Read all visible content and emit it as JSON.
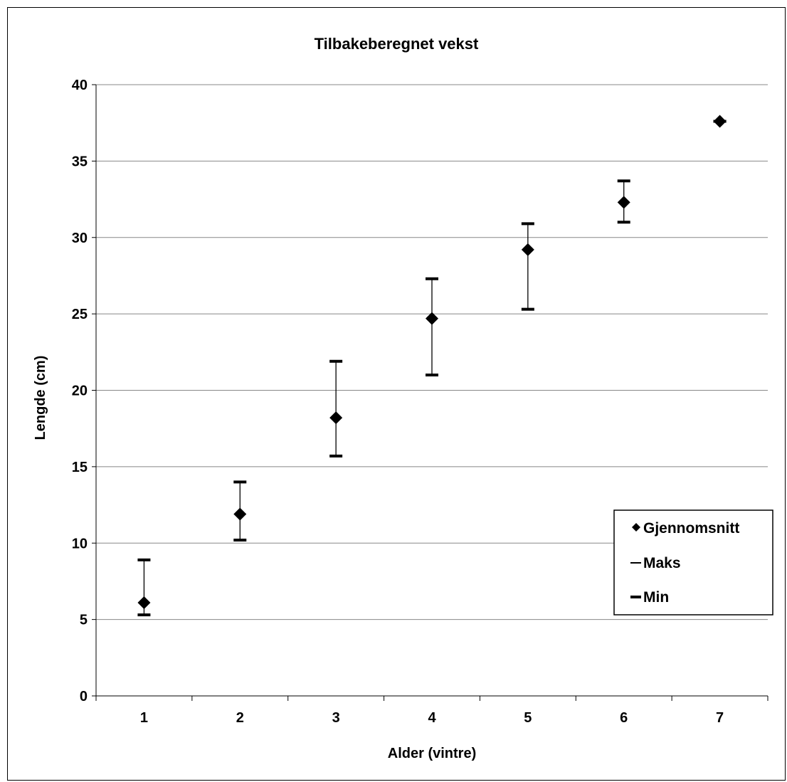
{
  "chart_data": {
    "type": "scatter",
    "title": "Tilbakeberegnet vekst",
    "xlabel": "Alder (vintre)",
    "ylabel": "Lengde (cm)",
    "categories": [
      "1",
      "2",
      "3",
      "4",
      "5",
      "6",
      "7"
    ],
    "ylim": [
      0,
      40
    ],
    "yticks": [
      "0",
      "5",
      "10",
      "15",
      "20",
      "25",
      "30",
      "35",
      "40"
    ],
    "grid": true,
    "legend_position": "bottom-right",
    "series": [
      {
        "name": "Gjennomsnitt",
        "marker": "diamond",
        "values": [
          6.1,
          11.9,
          18.2,
          24.7,
          29.2,
          32.3,
          37.6
        ]
      },
      {
        "name": "Maks",
        "marker": "dash",
        "values": [
          8.9,
          14.0,
          21.9,
          27.3,
          30.9,
          33.7,
          37.6
        ]
      },
      {
        "name": "Min",
        "marker": "dash",
        "values": [
          5.3,
          10.2,
          15.7,
          21.0,
          25.3,
          31.0,
          37.6
        ]
      }
    ],
    "colors": {
      "marker": "#000000",
      "grid": "#888888",
      "axis": "#000000",
      "background": "#ffffff"
    }
  }
}
